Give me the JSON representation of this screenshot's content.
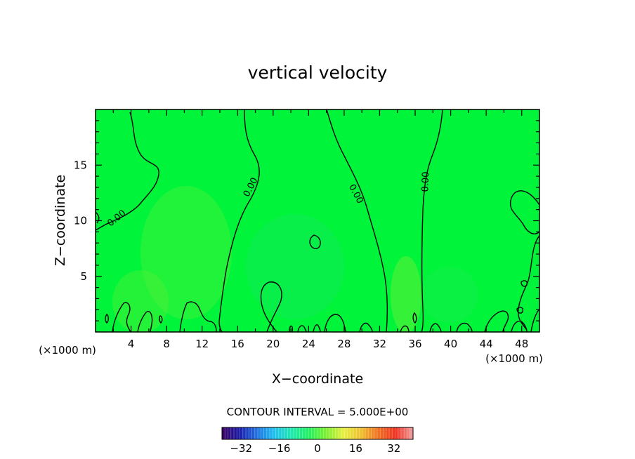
{
  "chart_data": {
    "type": "heatmap",
    "title": "vertical velocity",
    "xlabel": "X−coordinate",
    "ylabel": "Z−coordinate",
    "x_unit_left": "(×1000 m)",
    "x_unit_right": "(×1000 m)",
    "xlim": [
      0,
      50
    ],
    "ylim": [
      0,
      20
    ],
    "x_ticks": [
      4,
      8,
      12,
      16,
      20,
      24,
      28,
      32,
      36,
      40,
      44,
      48
    ],
    "x_tick_labels": [
      "4",
      "8",
      "12",
      "16",
      "20",
      "24",
      "28",
      "32",
      "36",
      "40",
      "44",
      "48"
    ],
    "y_ticks": [
      5,
      10,
      15
    ],
    "y_tick_labels": [
      "5",
      "10",
      "15"
    ],
    "field_color": "#00f53a",
    "contours": [
      {
        "label": "0.00",
        "x": 2.4,
        "z": 10.2
      },
      {
        "label": "0.00",
        "x": 17.5,
        "z": 13.0
      },
      {
        "label": "0.00",
        "x": 29.3,
        "z": 12.4
      },
      {
        "label": "0.00",
        "x": 37.2,
        "z": 13.5
      }
    ],
    "contour_interval_text": "CONTOUR INTERVAL = 5.000E+00",
    "colorbar": {
      "range": [
        -40,
        40
      ],
      "ticks": [
        -32,
        -16,
        0,
        16,
        32
      ],
      "tick_labels": [
        "−32",
        "−16",
        "0",
        "16",
        "32"
      ],
      "colors": [
        "#3a0060",
        "#1a1aa8",
        "#1f6fe0",
        "#1fc0f0",
        "#1ee8b0",
        "#22f060",
        "#7cf030",
        "#e8f040",
        "#f0c030",
        "#f07020",
        "#f03020",
        "#f0a0a0"
      ]
    }
  }
}
